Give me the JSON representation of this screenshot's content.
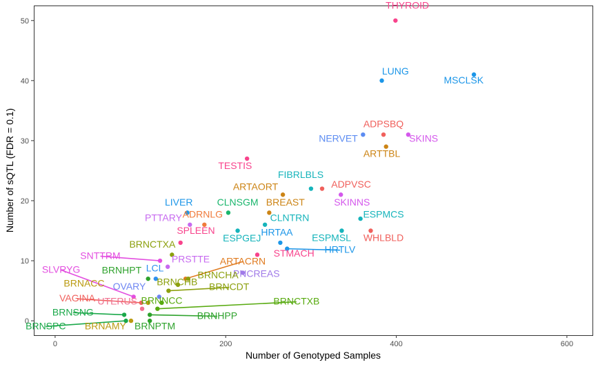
{
  "chart_data": {
    "type": "scatter",
    "title": "",
    "xlabel": "Number of Genotyped Samples",
    "ylabel": "Number of sQTL (FDR = 0.1)",
    "xlim": [
      -25,
      630
    ],
    "ylim": [
      -2.4,
      52.5
    ],
    "xticks": [
      0,
      200,
      400,
      600
    ],
    "yticks": [
      0,
      10,
      20,
      30,
      40,
      50
    ],
    "grid": false,
    "legend": "none",
    "points": [
      {
        "label": "THYROID",
        "x": 399,
        "y": 50,
        "color": "#F8438C",
        "lx": 413,
        "ly": 52
      },
      {
        "label": "LUNG",
        "x": 383,
        "y": 40,
        "color": "#1C96E8",
        "lx": 399,
        "ly": 41
      },
      {
        "label": "MSCLSK",
        "x": 491,
        "y": 41,
        "color": "#1C96E8",
        "lx": 479,
        "ly": 39.5
      },
      {
        "label": "NERVET",
        "x": 361,
        "y": 31,
        "color": "#5C8CF2",
        "lx": 332,
        "ly": 29.8
      },
      {
        "label": "ADPSBQ",
        "x": 385,
        "y": 31,
        "color": "#F0605C",
        "lx": 385,
        "ly": 32.2
      },
      {
        "label": "SKINS",
        "x": 414,
        "y": 31,
        "color": "#D458EC",
        "lx": 432,
        "ly": 29.8
      },
      {
        "label": "ARTTBL",
        "x": 388,
        "y": 29,
        "color": "#CC8415",
        "lx": 383,
        "ly": 27.3
      },
      {
        "label": "TESTIS",
        "x": 225,
        "y": 27,
        "color": "#F8438C",
        "lx": 211,
        "ly": 25.3
      },
      {
        "label": "FIBRLBLS",
        "x": 300,
        "y": 22,
        "color": "#16B4BB",
        "lx": 288,
        "ly": 23.8
      },
      {
        "label": "ADPVSC",
        "x": 313,
        "y": 22,
        "color": "#F0605C",
        "lx": 347,
        "ly": 22.2
      },
      {
        "label": "ARTAORT",
        "x": 267,
        "y": 21,
        "color": "#CC8415",
        "lx": 235,
        "ly": 21.8
      },
      {
        "label": "SKINNS",
        "x": 335,
        "y": 21,
        "color": "#D458EC",
        "lx": 348,
        "ly": 19.2
      },
      {
        "label": "CLNSGM",
        "x": 203,
        "y": 18,
        "color": "#1BB66D",
        "lx": 214,
        "ly": 19.2
      },
      {
        "label": "BREAST",
        "x": 251,
        "y": 18,
        "color": "#CC8415",
        "lx": 270,
        "ly": 19.2
      },
      {
        "label": "LIVER",
        "x": 155,
        "y": 18,
        "color": "#1C96E8",
        "lx": 145,
        "ly": 19.2
      },
      {
        "label": "ESPMCS",
        "x": 358,
        "y": 17,
        "color": "#16B4BB",
        "lx": 385,
        "ly": 17.2
      },
      {
        "label": "ADRNLG",
        "x": 175,
        "y": 16,
        "color": "#F07B3C",
        "lx": 173,
        "ly": 17.2
      },
      {
        "label": "PTTARY",
        "x": 158,
        "y": 16,
        "color": "#C76AF0",
        "lx": 127,
        "ly": 16.6
      },
      {
        "label": "CLNTRN",
        "x": 246,
        "y": 16,
        "color": "#16B4BB",
        "lx": 275,
        "ly": 16.6
      },
      {
        "label": "ESPGEJ",
        "x": 214,
        "y": 15,
        "color": "#16B4BB",
        "lx": 219,
        "ly": 13.2
      },
      {
        "label": "ESPMSL",
        "x": 336,
        "y": 15,
        "color": "#16B4BB",
        "lx": 324,
        "ly": 13.3
      },
      {
        "label": "WHLBLD",
        "x": 370,
        "y": 15,
        "color": "#F0605C",
        "lx": 385,
        "ly": 13.3
      },
      {
        "label": "HRTAA",
        "x": 264,
        "y": 13,
        "color": "#1C96E8",
        "lx": 260,
        "ly": 14.2
      },
      {
        "label": "SPLEEN",
        "x": 147,
        "y": 13,
        "color": "#F8438C",
        "lx": 165,
        "ly": 14.5
      },
      {
        "label": "HRTLV",
        "x": 272,
        "y": 12,
        "color": "#1C96E8",
        "lx": 334,
        "ly": 11.3,
        "leader": true
      },
      {
        "label": "BRNCTXA",
        "x": 137,
        "y": 11,
        "color": "#8CA00E",
        "lx": 114,
        "ly": 12.2
      },
      {
        "label": "STMACH",
        "x": 237,
        "y": 11,
        "color": "#F8438C",
        "lx": 280,
        "ly": 10.7
      },
      {
        "label": "SNTTRM",
        "x": 123,
        "y": 10,
        "color": "#E34FE0",
        "lx": 53,
        "ly": 10.3,
        "leader": true
      },
      {
        "label": "PRSTTE",
        "x": 132,
        "y": 9,
        "color": "#C76AF0",
        "lx": 159,
        "ly": 9.7
      },
      {
        "label": "ARTACRN",
        "x": 153,
        "y": 7,
        "color": "#E07B20",
        "lx": 220,
        "ly": 9.4,
        "leader": true
      },
      {
        "label": "LCL",
        "x": 118,
        "y": 7,
        "color": "#2F8FF0",
        "lx": 117,
        "ly": 8.2
      },
      {
        "label": "PNCREAS",
        "x": 220,
        "y": 8,
        "color": "#A07AE8",
        "lx": 236,
        "ly": 7.3
      },
      {
        "label": "BRNHPT",
        "x": 109,
        "y": 7,
        "color": "#2EA22C",
        "lx": 78,
        "ly": 7.9
      },
      {
        "label": "SLVRYG",
        "x": 92,
        "y": 4,
        "color": "#E34FE0",
        "lx": 7,
        "ly": 8,
        "leader": true
      },
      {
        "label": "BRNCHA",
        "x": 156,
        "y": 7,
        "color": "#8CA00E",
        "lx": 191,
        "ly": 7.1
      },
      {
        "label": "BRNCHB",
        "x": 144,
        "y": 6,
        "color": "#8CA00E",
        "lx": 143,
        "ly": 5.9
      },
      {
        "label": "BRNCDT",
        "x": 133,
        "y": 5,
        "color": "#8CA00E",
        "lx": 204,
        "ly": 5.1,
        "leader": true
      },
      {
        "label": "BRNACC",
        "x": 109,
        "y": 3,
        "color": "#BA9A10",
        "lx": 34,
        "ly": 5.7
      },
      {
        "label": "OVARY",
        "x": 122,
        "y": 4,
        "color": "#6E86F2",
        "lx": 87,
        "ly": 5.2
      },
      {
        "label": "VAGINA",
        "x": 101,
        "y": 3,
        "color": "#F0605C",
        "lx": 26,
        "ly": 3.2,
        "leader": true
      },
      {
        "label": "UTERUS",
        "x": 102,
        "y": 2,
        "color": "#F07090",
        "lx": 73,
        "ly": 2.7
      },
      {
        "label": "BRNNCC",
        "x": 125,
        "y": 3,
        "color": "#58AA10",
        "lx": 125,
        "ly": 2.8
      },
      {
        "label": "BRNCTXB",
        "x": 120,
        "y": 2,
        "color": "#58AA10",
        "lx": 283,
        "ly": 2.7,
        "leader": true
      },
      {
        "label": "BRNSNG",
        "x": 81,
        "y": 1,
        "color": "#1BA84A",
        "lx": 21,
        "ly": 0.9,
        "leader": true
      },
      {
        "label": "BRNHPP",
        "x": 111,
        "y": 1,
        "color": "#2EA22C",
        "lx": 190,
        "ly": 0.3,
        "leader": true
      },
      {
        "label": "BRNSPC",
        "x": 83,
        "y": 0,
        "color": "#1BA84A",
        "lx": -11,
        "ly": -1.4,
        "leader": true
      },
      {
        "label": "BRNAMY",
        "x": 89,
        "y": 0,
        "color": "#BA9A10",
        "lx": 59,
        "ly": -1.4
      },
      {
        "label": "BRNPTM",
        "x": 111,
        "y": 0,
        "color": "#2EA22C",
        "lx": 117,
        "ly": -1.4
      }
    ]
  }
}
